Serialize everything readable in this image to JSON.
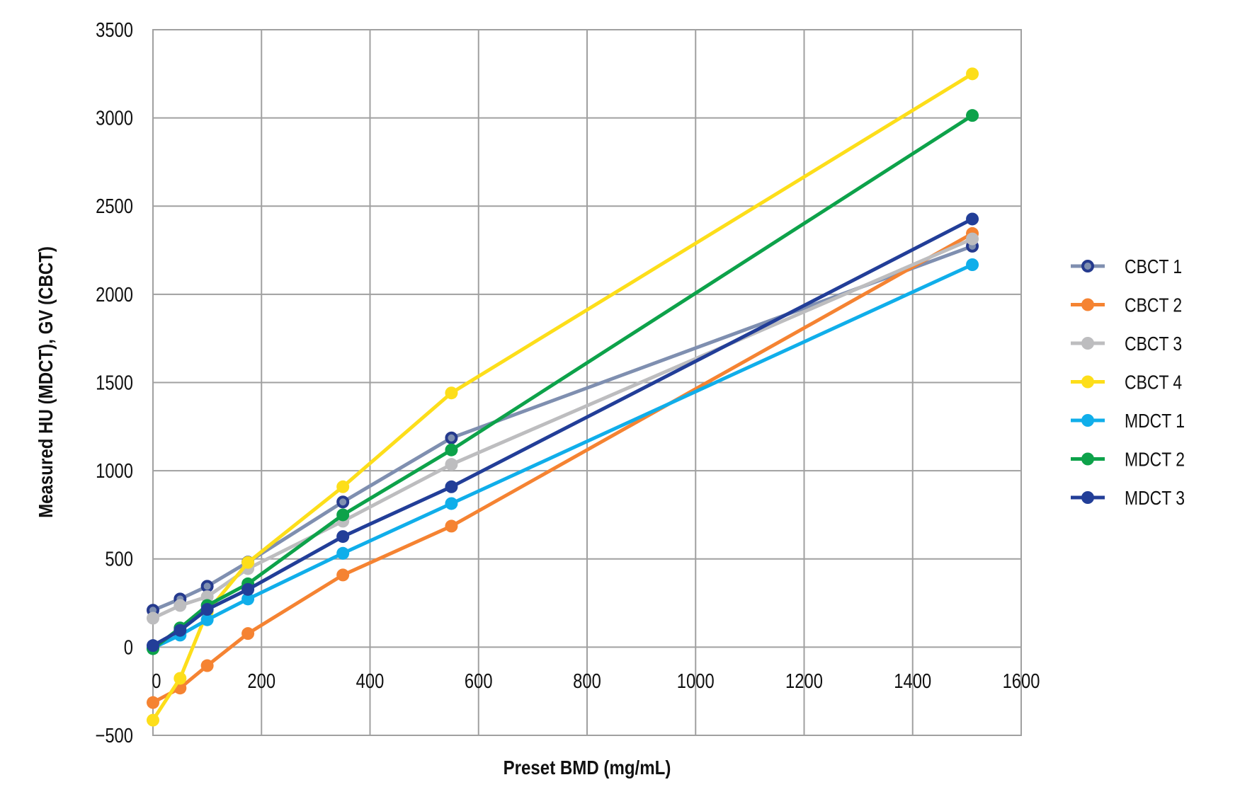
{
  "chart_data": {
    "type": "line",
    "title": "",
    "xlabel": "Preset BMD (mg/mL)",
    "ylabel": "Measured HU (MDCT), GV (CBCT)",
    "xlim": [
      0,
      1600
    ],
    "ylim": [
      -500,
      3500
    ],
    "xticks": [
      0,
      200,
      400,
      600,
      800,
      1000,
      1200,
      1400,
      1600
    ],
    "yticks": [
      -500,
      0,
      500,
      1000,
      1500,
      2000,
      2500,
      3000,
      3500
    ],
    "ytick_labels": [
      "−500",
      "0",
      "500",
      "1000",
      "1500",
      "2000",
      "2500",
      "3000",
      "3500"
    ],
    "grid": true,
    "legend_position": "right",
    "x": [
      0,
      50,
      100,
      175,
      350,
      550,
      1510
    ],
    "series": [
      {
        "name": "CBCT 1",
        "color": "#7f8fb0",
        "marker_edge": "#253a8e",
        "values": [
          209,
          273,
          345,
          482,
          823,
          1186,
          2273
        ]
      },
      {
        "name": "CBCT 2",
        "color": "#f58332",
        "values": [
          -314,
          -232,
          -105,
          77,
          409,
          686,
          2345
        ]
      },
      {
        "name": "CBCT 3",
        "color": "#bdbdbf",
        "values": [
          164,
          236,
          286,
          445,
          714,
          1036,
          2314
        ]
      },
      {
        "name": "CBCT 4",
        "color": "#fdde1a",
        "values": [
          -414,
          -177,
          200,
          480,
          909,
          1441,
          3250
        ]
      },
      {
        "name": "MDCT 1",
        "color": "#10aeea",
        "values": [
          -5,
          68,
          155,
          273,
          532,
          814,
          2168
        ]
      },
      {
        "name": "MDCT 2",
        "color": "#0da24a",
        "values": [
          -9,
          109,
          236,
          359,
          750,
          1118,
          3014
        ]
      },
      {
        "name": "MDCT 3",
        "color": "#223e98",
        "values": [
          9,
          95,
          214,
          327,
          627,
          909,
          2427
        ]
      }
    ]
  }
}
